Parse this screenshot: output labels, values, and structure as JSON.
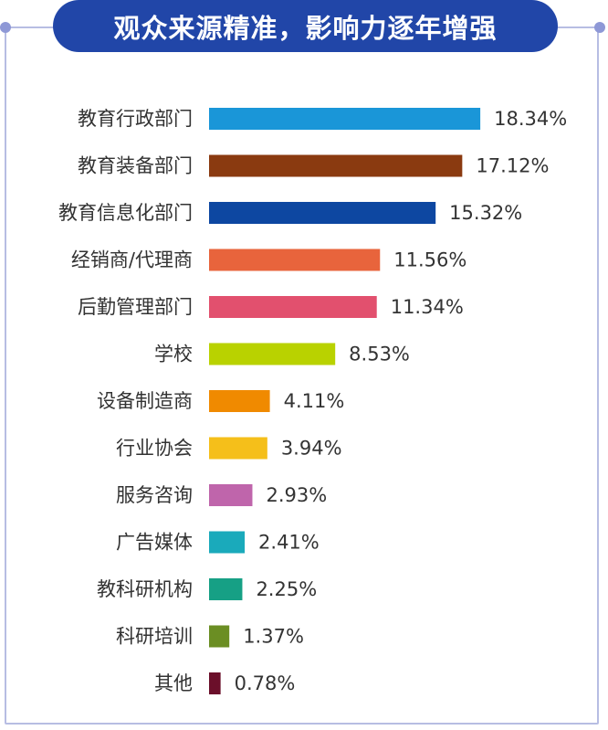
{
  "title": "观众来源精准，影响力逐年增强",
  "chart_data": {
    "type": "bar",
    "orientation": "horizontal",
    "title": "观众来源精准，影响力逐年增强",
    "categories": [
      "教育行政部门",
      "教育装备部门",
      "教育信息化部门",
      "经销商/代理商",
      "后勤管理部门",
      "学校",
      "设备制造商",
      "行业协会",
      "服务咨询",
      "广告媒体",
      "教科研机构",
      "科研培训",
      "其他"
    ],
    "values": [
      18.34,
      17.12,
      15.32,
      11.56,
      11.34,
      8.53,
      4.11,
      3.94,
      2.93,
      2.41,
      2.25,
      1.37,
      0.78
    ],
    "value_labels": [
      "18.34%",
      "17.12%",
      "15.32%",
      "11.56%",
      "11.34%",
      "8.53%",
      "4.11%",
      "3.94%",
      "2.93%",
      "2.41%",
      "2.25%",
      "1.37%",
      "0.78%"
    ],
    "colors": [
      "#1a96d8",
      "#8a3a10",
      "#0d47a1",
      "#e8643c",
      "#e2506e",
      "#b9d200",
      "#f08a00",
      "#f5bf1a",
      "#bf65ab",
      "#1aaabb",
      "#16a085",
      "#6b8e23",
      "#6b0f2a"
    ],
    "unit": "%",
    "grid": false,
    "legend": "none"
  }
}
